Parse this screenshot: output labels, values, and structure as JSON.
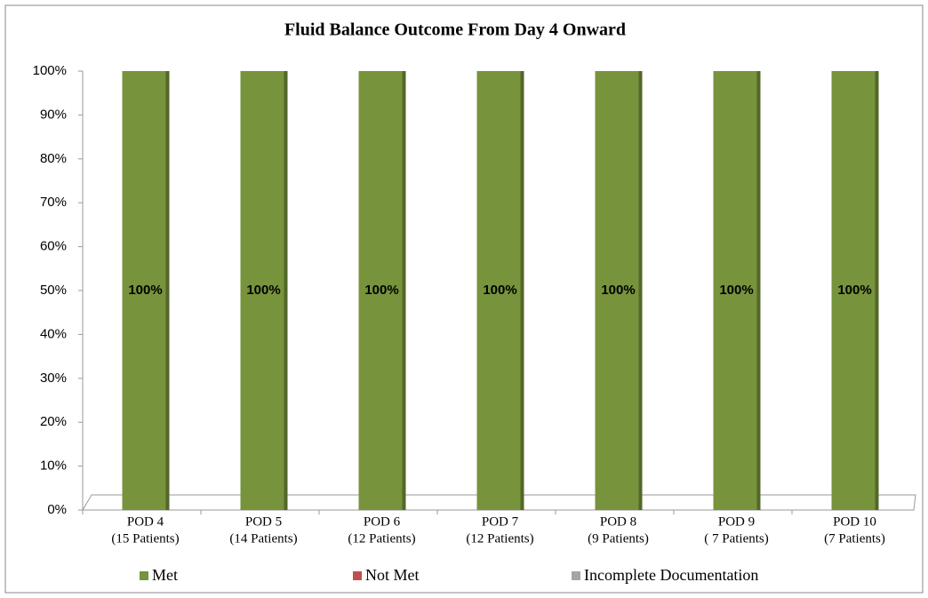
{
  "chart_data": {
    "type": "stacked_bar",
    "title": "Fluid Balance Outcome From Day 4 Onward",
    "categories": [
      [
        "POD 4",
        "(15 Patients)"
      ],
      [
        "POD 5",
        "(14 Patients)"
      ],
      [
        "POD 6",
        "(12 Patients)"
      ],
      [
        "POD 7",
        "(12 Patients)"
      ],
      [
        "POD 8",
        "(9 Patients)"
      ],
      [
        "POD 9",
        "( 7 Patients)"
      ],
      [
        "POD 10",
        "(7 Patients)"
      ]
    ],
    "series": [
      {
        "name": "Met",
        "color": "#77933c",
        "values": [
          100,
          100,
          100,
          100,
          100,
          100,
          100
        ],
        "value_labels": [
          "100%",
          "100%",
          "100%",
          "100%",
          "100%",
          "100%",
          "100%"
        ]
      },
      {
        "name": "Not Met",
        "color": "#c0504d",
        "values": [
          0,
          0,
          0,
          0,
          0,
          0,
          0
        ]
      },
      {
        "name": "Incomplete Documentation",
        "color": "#a5a5a5",
        "values": [
          0,
          0,
          0,
          0,
          0,
          0,
          0
        ]
      }
    ],
    "ylim": [
      0,
      100
    ],
    "yticks": [
      {
        "value": 0,
        "label": "0%"
      },
      {
        "value": 10,
        "label": "10%"
      },
      {
        "value": 20,
        "label": "20%"
      },
      {
        "value": 30,
        "label": "30%"
      },
      {
        "value": 40,
        "label": "40%"
      },
      {
        "value": 50,
        "label": "50%"
      },
      {
        "value": 60,
        "label": "60%"
      },
      {
        "value": 70,
        "label": "70%"
      },
      {
        "value": 80,
        "label": "80%"
      },
      {
        "value": 90,
        "label": "90%"
      },
      {
        "value": 100,
        "label": "100%"
      }
    ],
    "grid": false,
    "legend": "bottom"
  }
}
